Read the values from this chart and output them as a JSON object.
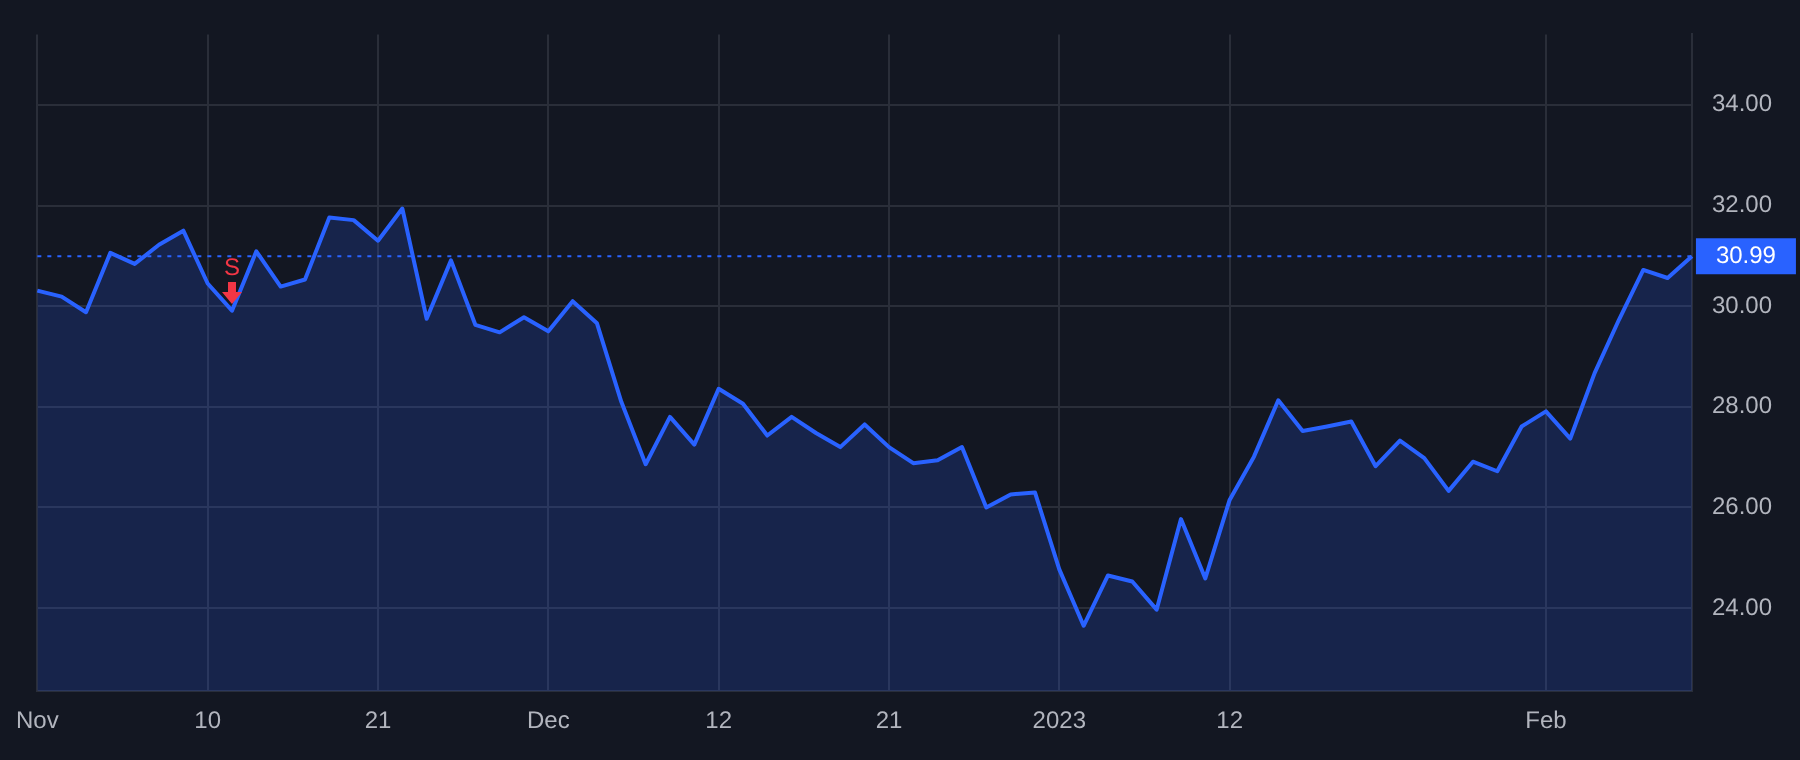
{
  "chart_data": {
    "type": "area",
    "categories": [
      "Nov",
      null,
      null,
      null,
      null,
      null,
      null,
      "10",
      null,
      null,
      null,
      null,
      null,
      null,
      "21",
      null,
      null,
      null,
      null,
      null,
      null,
      "Dec",
      null,
      null,
      null,
      null,
      null,
      null,
      "12",
      null,
      null,
      null,
      null,
      null,
      null,
      "21",
      null,
      null,
      null,
      null,
      null,
      null,
      "2023",
      null,
      null,
      null,
      null,
      null,
      null,
      "12",
      null,
      null,
      null,
      null,
      null,
      null,
      null,
      null,
      null,
      null,
      null,
      null,
      "Feb",
      null,
      null,
      null,
      null,
      null,
      null
    ],
    "series": [
      {
        "color": "#2962ff",
        "values": [
          30.31,
          30.19,
          29.88,
          31.06,
          30.84,
          31.22,
          31.5,
          30.45,
          29.91,
          31.09,
          30.39,
          30.53,
          31.76,
          31.71,
          31.3,
          31.94,
          29.75,
          30.91,
          29.63,
          29.48,
          29.78,
          29.5,
          30.1,
          29.66,
          28.1,
          26.86,
          27.8,
          27.25,
          28.36,
          28.06,
          27.43,
          27.8,
          27.48,
          27.2,
          27.65,
          27.2,
          26.88,
          26.94,
          27.2,
          26.0,
          26.26,
          26.3,
          24.77,
          23.65,
          24.65,
          24.53,
          23.97,
          25.77,
          24.59,
          26.15,
          27.01,
          28.13,
          27.52,
          27.61,
          27.71,
          26.82,
          27.33,
          26.98,
          26.33,
          26.91,
          26.72,
          27.61,
          27.91,
          27.37,
          28.67,
          29.73,
          30.72,
          30.56,
          30.99
        ]
      }
    ],
    "ylim": [
      22.35,
      35.4
    ],
    "yticks": [
      {
        "value": 24,
        "label": "24.00"
      },
      {
        "value": 26,
        "label": "26.00"
      },
      {
        "value": 28,
        "label": "28.00"
      },
      {
        "value": 30,
        "label": "30.00"
      },
      {
        "value": 32,
        "label": "32.00"
      },
      {
        "value": 34,
        "label": "34.00"
      }
    ],
    "ref_lines": [
      {
        "axis": "y",
        "value": 30.99,
        "label": "30.99",
        "color": "#2962ff",
        "line_style": "dotted"
      }
    ],
    "annotations": [
      {
        "text": "S",
        "y": 29.91
      }
    ],
    "grid": true,
    "legend": false,
    "marker": "none",
    "line_style": "solid"
  }
}
